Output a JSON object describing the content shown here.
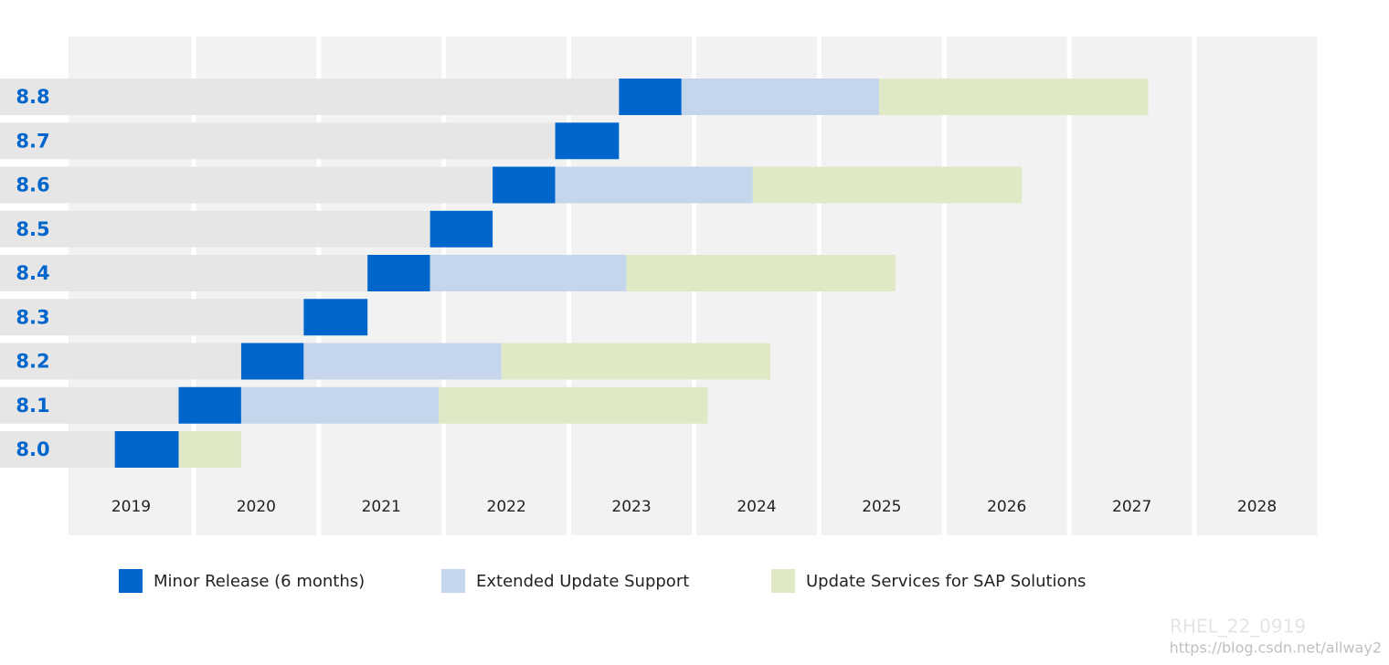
{
  "chart_data": {
    "type": "gantt",
    "categories": [
      "8.8",
      "8.7",
      "8.6",
      "8.5",
      "8.4",
      "8.3",
      "8.2",
      "8.1",
      "8.0"
    ],
    "xlim": [
      2019,
      2029
    ],
    "xticks": [
      2019,
      2020,
      2021,
      2022,
      2023,
      2024,
      2025,
      2026,
      2027,
      2028
    ],
    "series": [
      {
        "name": "Minor Release (6 months)",
        "color": "#0066cc",
        "start": [
          2023.4,
          2022.89,
          2022.39,
          2021.89,
          2021.39,
          2020.88,
          2020.38,
          2019.88,
          2019.37
        ],
        "end": [
          2023.9,
          2023.4,
          2022.89,
          2022.39,
          2021.89,
          2021.39,
          2020.88,
          2020.38,
          2019.88
        ]
      },
      {
        "name": "Extended Update Support",
        "color": "#c5d6ec",
        "start": [
          2023.9,
          null,
          2022.89,
          null,
          2021.89,
          null,
          2020.88,
          2020.38,
          null
        ],
        "end": [
          2025.48,
          null,
          2024.47,
          null,
          2023.46,
          null,
          2022.46,
          2021.96,
          null
        ]
      },
      {
        "name": "Update Services for SAP Solutions",
        "color": "#dfe9c6",
        "start": [
          2025.48,
          null,
          2024.47,
          null,
          2023.46,
          null,
          2022.46,
          2021.96,
          2019.88
        ],
        "end": [
          2027.63,
          null,
          2026.62,
          null,
          2025.61,
          null,
          2024.61,
          2024.11,
          2020.38
        ]
      }
    ],
    "watermark": [
      "RHEL_22_0919",
      "https://blog.csdn.net/allway2"
    ]
  }
}
